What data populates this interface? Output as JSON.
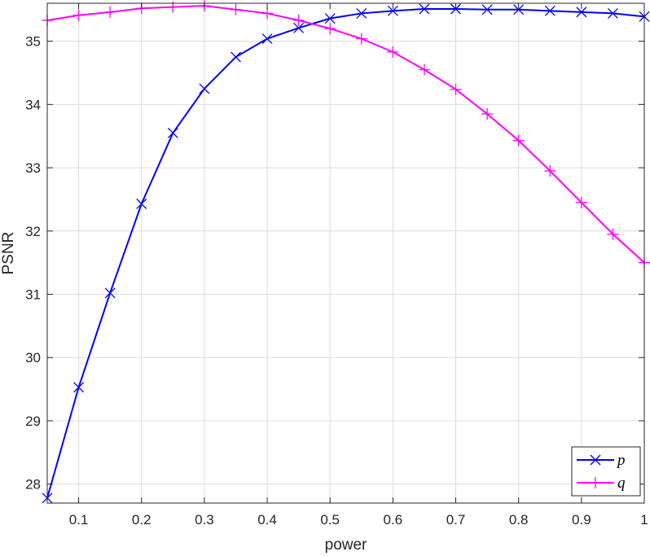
{
  "chart_data": {
    "type": "line",
    "xlabel": "power",
    "ylabel": "PSNR",
    "xlim": [
      0.05,
      1.0
    ],
    "ylim": [
      27.7,
      35.6
    ],
    "xticks": [
      0.1,
      0.2,
      0.3,
      0.4,
      0.5,
      0.6,
      0.7,
      0.8,
      0.9,
      1.0
    ],
    "xtick_labels": [
      "0.1",
      "0.2",
      "0.3",
      "0.4",
      "0.5",
      "0.6",
      "0.7",
      "0.8",
      "0.9",
      "1"
    ],
    "yticks": [
      28,
      29,
      30,
      31,
      32,
      33,
      34,
      35
    ],
    "ytick_labels": [
      "28",
      "29",
      "30",
      "31",
      "32",
      "33",
      "34",
      "35"
    ],
    "grid": true,
    "legend_position": "bottom-right",
    "x": [
      0.05,
      0.1,
      0.15,
      0.2,
      0.25,
      0.3,
      0.35,
      0.4,
      0.45,
      0.5,
      0.55,
      0.6,
      0.65,
      0.7,
      0.75,
      0.8,
      0.85,
      0.9,
      0.95,
      1.0
    ],
    "series": [
      {
        "name": "p",
        "color": "#0000ff",
        "marker": "x",
        "values": [
          27.78,
          29.53,
          31.02,
          32.43,
          33.55,
          34.25,
          34.75,
          35.04,
          35.21,
          35.36,
          35.44,
          35.48,
          35.51,
          35.51,
          35.5,
          35.5,
          35.48,
          35.46,
          35.44,
          35.39
        ]
      },
      {
        "name": "q",
        "color": "#ff00ff",
        "marker": "+",
        "values": [
          35.33,
          35.41,
          35.46,
          35.52,
          35.54,
          35.56,
          35.5,
          35.44,
          35.33,
          35.2,
          35.04,
          34.83,
          34.55,
          34.24,
          33.85,
          33.43,
          32.95,
          32.45,
          31.95,
          31.5
        ]
      }
    ]
  }
}
